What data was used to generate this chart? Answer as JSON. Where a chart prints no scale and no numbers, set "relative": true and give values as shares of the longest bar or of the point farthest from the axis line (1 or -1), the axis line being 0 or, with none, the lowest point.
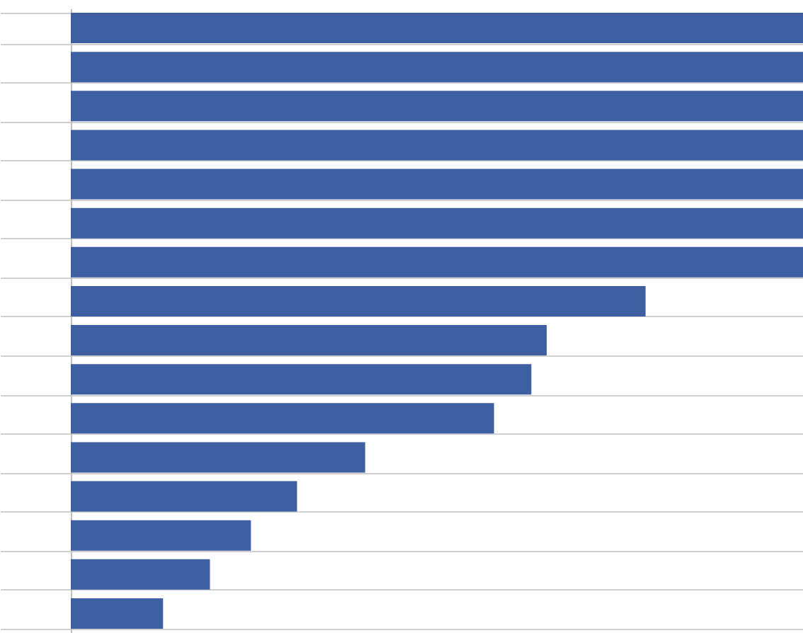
{
  "chart_data": {
    "type": "bar",
    "orientation": "horizontal",
    "relative": true,
    "categories": [
      null,
      null,
      null,
      null,
      null,
      null,
      null,
      null,
      null,
      null,
      null,
      null,
      null,
      null,
      null,
      null
    ],
    "values": [
      1,
      1,
      1,
      1,
      1,
      1,
      1,
      0.785,
      0.65,
      0.629,
      0.578,
      0.402,
      0.309,
      0.246,
      0.19,
      0.126
    ],
    "color": "#3f5fa3",
    "grid": "y"
  }
}
